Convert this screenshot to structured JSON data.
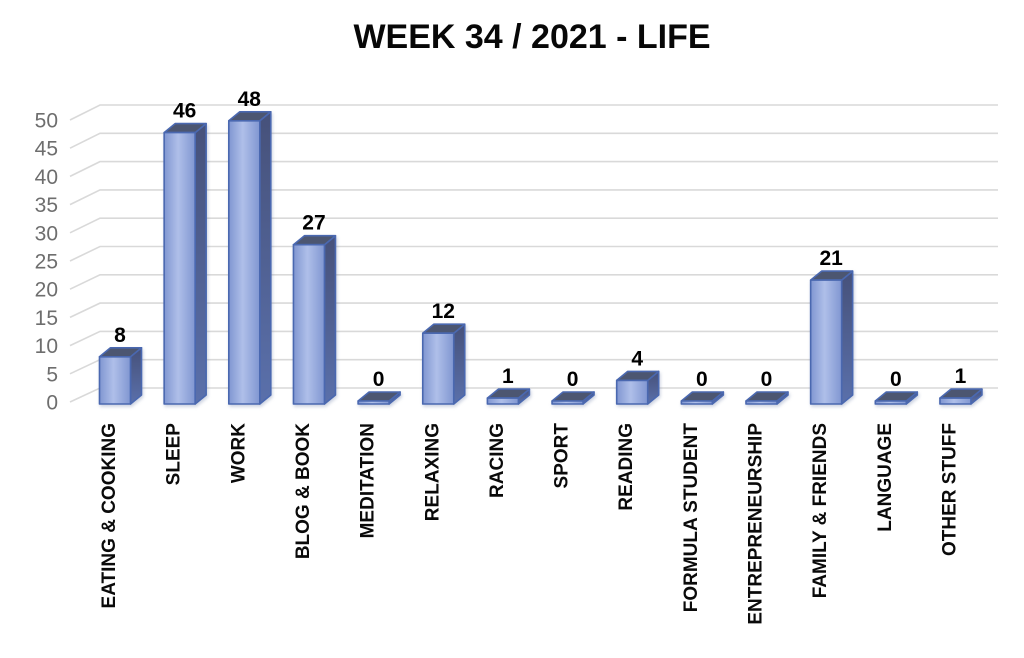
{
  "title": "WEEK 34 / 2021 - LIFE",
  "chart_data": {
    "type": "bar",
    "style": "3d-column",
    "title": "WEEK 34 / 2021 - LIFE",
    "categories": [
      "EATING & COOKING",
      "SLEEP",
      "WORK",
      "BLOG & BOOK",
      "MEDITATION",
      "RELAXING",
      "RACING",
      "SPORT",
      "READING",
      "FORMULA STUDENT",
      "ENTREPRENEURSHIP",
      "FAMILY & FRIENDS",
      "LANGUAGE",
      "OTHER STUFF"
    ],
    "values": [
      8,
      46,
      48,
      27,
      0,
      12,
      1,
      0,
      4,
      0,
      0,
      21,
      0,
      1
    ],
    "value_labels_shown": true,
    "xlabel": "",
    "ylabel": "",
    "ylim": [
      0,
      50
    ],
    "ytick_step": 5,
    "grid": true,
    "legend": "none",
    "colors": {
      "background": "#FFFFFF",
      "bar_front_edge": "#8096D1",
      "bar_front_center": "#AFBFE9",
      "bar_side_top": "#46517A",
      "bar_side_bottom": "#5A70AB",
      "bar_top": "#4C5671",
      "bar_stroke": "#4A68B0",
      "gridline": "#D9D9D9",
      "ytick_label": "#6E6E6E",
      "value_label": "#000000",
      "category_label": "#0A0A0A",
      "title": "#070707"
    }
  }
}
